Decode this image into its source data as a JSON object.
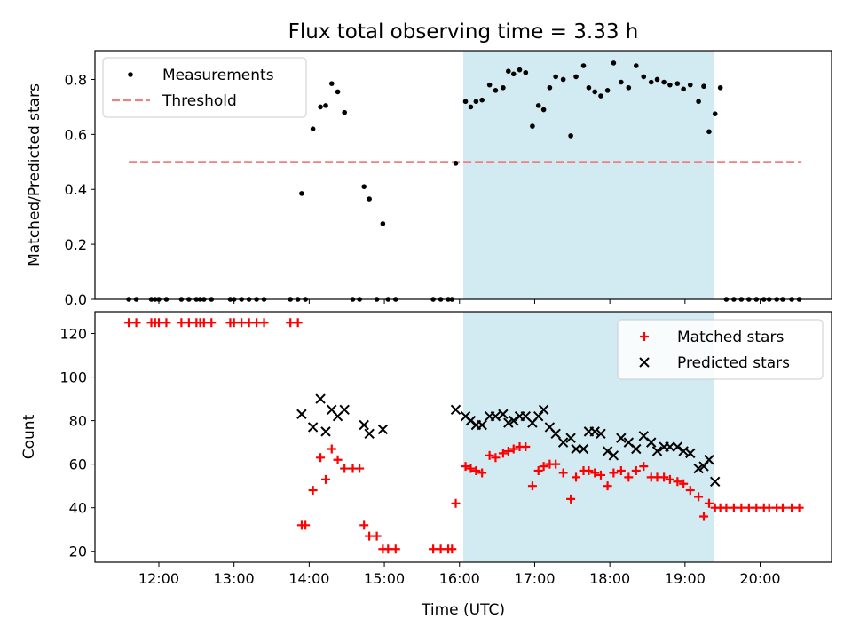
{
  "chart_data": [
    {
      "panel": "top",
      "type": "scatter",
      "title": "Flux total observing time = 3.33 h",
      "xlabel": "",
      "ylabel": "Matched/Predicted stars",
      "xlim_hours": [
        11.15,
        20.95
      ],
      "ylim": [
        0,
        0.905
      ],
      "yticks": [
        0.0,
        0.2,
        0.4,
        0.6,
        0.8
      ],
      "ytick_labels": [
        "0.0",
        "0.2",
        "0.4",
        "0.6",
        "0.8"
      ],
      "shaded_span_hours": [
        16.05,
        19.38
      ],
      "shade_color": "#add8e6",
      "legend": {
        "position": "upper-left",
        "entries": [
          "Measurements",
          "Threshold"
        ]
      },
      "threshold": {
        "name": "Threshold",
        "value": 0.5,
        "x_range_hours": [
          11.6,
          20.55
        ],
        "color": "#f08080",
        "style": "dashed"
      },
      "series": [
        {
          "name": "Measurements",
          "color": "#000000",
          "marker": "dot",
          "x": [
            11.6,
            11.7,
            11.9,
            11.95,
            12.0,
            12.1,
            12.3,
            12.4,
            12.5,
            12.55,
            12.6,
            12.7,
            12.95,
            13.0,
            13.1,
            13.2,
            13.3,
            13.4,
            13.75,
            13.85,
            13.9,
            13.95,
            14.05,
            14.15,
            14.22,
            14.3,
            14.38,
            14.47,
            14.58,
            14.67,
            14.73,
            14.8,
            14.9,
            14.98,
            15.05,
            15.15,
            15.65,
            15.75,
            15.85,
            15.9,
            15.95,
            16.08,
            16.15,
            16.22,
            16.3,
            16.4,
            16.48,
            16.58,
            16.65,
            16.72,
            16.8,
            16.88,
            16.97,
            17.05,
            17.12,
            17.2,
            17.28,
            17.38,
            17.48,
            17.55,
            17.65,
            17.72,
            17.8,
            17.88,
            17.97,
            18.05,
            18.15,
            18.25,
            18.35,
            18.45,
            18.55,
            18.63,
            18.72,
            18.8,
            18.9,
            18.98,
            19.07,
            19.18,
            19.25,
            19.32,
            19.4,
            19.47,
            19.55,
            19.65,
            19.75,
            19.85,
            19.95,
            20.05,
            20.12,
            20.22,
            20.3,
            20.42,
            20.52
          ],
          "y": [
            0,
            0,
            0,
            0,
            0,
            0,
            0,
            0,
            0,
            0,
            0,
            0,
            0,
            0,
            0,
            0,
            0,
            0,
            0,
            0,
            0.385,
            0,
            0.62,
            0.7,
            0.705,
            0.785,
            0.755,
            0.68,
            0,
            0,
            0.41,
            0.365,
            0,
            0.275,
            0,
            0,
            0,
            0,
            0,
            0,
            0.495,
            0.72,
            0.7,
            0.72,
            0.725,
            0.78,
            0.76,
            0.77,
            0.83,
            0.82,
            0.835,
            0.825,
            0.63,
            0.705,
            0.69,
            0.77,
            0.81,
            0.8,
            0.595,
            0.81,
            0.85,
            0.77,
            0.755,
            0.74,
            0.76,
            0.86,
            0.79,
            0.77,
            0.85,
            0.81,
            0.79,
            0.8,
            0.79,
            0.78,
            0.785,
            0.765,
            0.78,
            0.72,
            0.775,
            0.61,
            0.675,
            0.77,
            0,
            0,
            0,
            0,
            0,
            0,
            0,
            0,
            0,
            0,
            0
          ]
        }
      ]
    },
    {
      "panel": "bottom",
      "type": "scatter",
      "title": "",
      "xlabel": "Time (UTC)",
      "ylabel": "Count",
      "xlim_hours": [
        11.15,
        20.95
      ],
      "ylim": [
        15,
        130
      ],
      "yticks": [
        20,
        40,
        60,
        80,
        100,
        120
      ],
      "ytick_labels": [
        "20",
        "40",
        "60",
        "80",
        "100",
        "120"
      ],
      "xticks_hours": [
        12,
        13,
        14,
        15,
        16,
        17,
        18,
        19,
        20
      ],
      "xtick_labels": [
        "12:00",
        "13:00",
        "14:00",
        "15:00",
        "16:00",
        "17:00",
        "18:00",
        "19:00",
        "20:00"
      ],
      "shaded_span_hours": [
        16.05,
        19.38
      ],
      "shade_color": "#add8e6",
      "legend": {
        "position": "upper-right",
        "entries": [
          "Matched stars",
          "Predicted stars"
        ]
      },
      "series": [
        {
          "name": "Matched stars",
          "color": "#ff0000",
          "marker": "plus",
          "x": [
            11.6,
            11.7,
            11.9,
            11.95,
            12.0,
            12.1,
            12.3,
            12.4,
            12.5,
            12.55,
            12.6,
            12.7,
            12.95,
            13.0,
            13.1,
            13.2,
            13.3,
            13.4,
            13.75,
            13.85,
            13.9,
            13.95,
            14.05,
            14.15,
            14.22,
            14.3,
            14.38,
            14.47,
            14.58,
            14.67,
            14.73,
            14.8,
            14.9,
            14.98,
            15.05,
            15.15,
            15.65,
            15.75,
            15.85,
            15.9,
            15.95,
            16.08,
            16.15,
            16.22,
            16.3,
            16.4,
            16.48,
            16.58,
            16.65,
            16.72,
            16.8,
            16.88,
            16.97,
            17.05,
            17.12,
            17.2,
            17.28,
            17.38,
            17.48,
            17.55,
            17.65,
            17.72,
            17.8,
            17.88,
            17.97,
            18.05,
            18.15,
            18.25,
            18.35,
            18.45,
            18.55,
            18.63,
            18.72,
            18.8,
            18.9,
            18.98,
            19.07,
            19.18,
            19.25,
            19.32,
            19.4,
            19.47,
            19.55,
            19.65,
            19.75,
            19.85,
            19.95,
            20.05,
            20.12,
            20.22,
            20.3,
            20.42,
            20.52
          ],
          "y": [
            125,
            125,
            125,
            125,
            125,
            125,
            125,
            125,
            125,
            125,
            125,
            125,
            125,
            125,
            125,
            125,
            125,
            125,
            125,
            125,
            32,
            32,
            48,
            63,
            53,
            67,
            62,
            58,
            58,
            58,
            32,
            27,
            27,
            21,
            21,
            21,
            21,
            21,
            21,
            21,
            42,
            59,
            58,
            57,
            56,
            64,
            63,
            65,
            66,
            67,
            68,
            68,
            50,
            57,
            59,
            60,
            60,
            56,
            44,
            54,
            57,
            57,
            56,
            55,
            50,
            56,
            57,
            54,
            57,
            59,
            54,
            54,
            54,
            53,
            52,
            51,
            48,
            45,
            36,
            42,
            40,
            40,
            40,
            40,
            40,
            40,
            40,
            40,
            40,
            40,
            40,
            40,
            40
          ]
        },
        {
          "name": "Predicted stars",
          "color": "#000000",
          "marker": "x",
          "x": [
            13.9,
            14.05,
            14.15,
            14.22,
            14.3,
            14.38,
            14.47,
            14.73,
            14.8,
            14.98,
            15.95,
            16.08,
            16.15,
            16.22,
            16.3,
            16.4,
            16.48,
            16.58,
            16.65,
            16.72,
            16.8,
            16.88,
            16.97,
            17.05,
            17.12,
            17.2,
            17.28,
            17.38,
            17.48,
            17.55,
            17.65,
            17.72,
            17.8,
            17.88,
            17.97,
            18.05,
            18.15,
            18.25,
            18.35,
            18.45,
            18.55,
            18.63,
            18.72,
            18.8,
            18.9,
            18.98,
            19.07,
            19.18,
            19.25,
            19.32,
            19.4
          ],
          "y": [
            83,
            77,
            90,
            75,
            85,
            82,
            85,
            78,
            74,
            76,
            85,
            82,
            80,
            78,
            78,
            82,
            82,
            83,
            79,
            80,
            82,
            82,
            79,
            82,
            85,
            77,
            74,
            70,
            72,
            67,
            67,
            75,
            75,
            74,
            66,
            64,
            72,
            70,
            67,
            73,
            70,
            66,
            68,
            68,
            68,
            66,
            65,
            58,
            59,
            62,
            52
          ]
        }
      ]
    }
  ]
}
